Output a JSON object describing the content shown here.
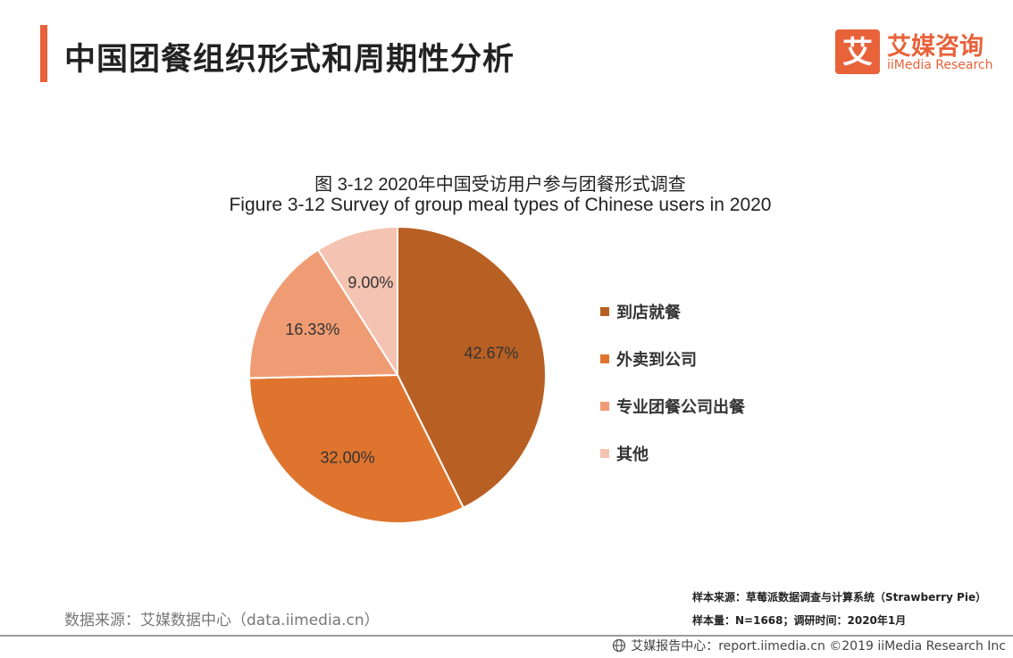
{
  "header": {
    "title": "中国团餐组织形式和周期性分析",
    "logo_cn": "艾媒咨询",
    "logo_en": "iiMedia Research",
    "logo_glyph": "艾",
    "accent": "#e8623a"
  },
  "chart_data": {
    "type": "pie",
    "title_cn": "图 3-12 2020年中国受访用户参与团餐形式调查",
    "title_en": "Figure 3-12 Survey of group meal types of Chinese users in 2020",
    "categories": [
      "到店就餐",
      "外卖到公司",
      "专业团餐公司出餐",
      "其他"
    ],
    "values": [
      42.67,
      32.0,
      16.33,
      9.0
    ],
    "labels": [
      "42.67%",
      "32.00%",
      "16.33%",
      "9.00%"
    ],
    "colors": [
      "#b86024",
      "#df742e",
      "#ef9c74",
      "#f4c3b1"
    ],
    "legend_position": "right"
  },
  "footer": {
    "sample_source": "样本来源：草莓派数据调查与计算系统（Strawberry Pie）",
    "sample_size": "样本量：N=1668；调研时间：2020年1月",
    "data_source": "数据来源：艾媒数据中心（data.iimedia.cn）",
    "report_center": "艾媒报告中心：report.iimedia.cn  ©2019  iiMedia Research  Inc"
  }
}
